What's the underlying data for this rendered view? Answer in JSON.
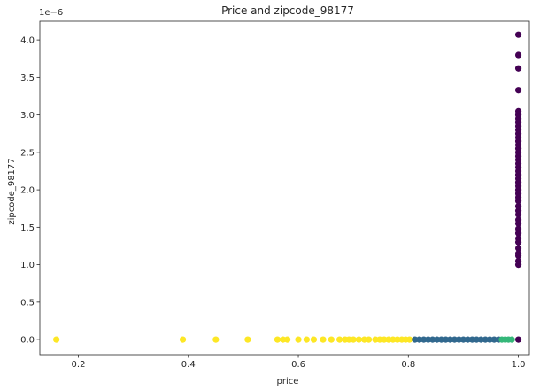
{
  "chart_data": {
    "type": "scatter",
    "title": "Price and zipcode_98177",
    "xlabel": "price",
    "ylabel": "zipcode_98177",
    "y_offset_label": "1e−6",
    "xlim": [
      0.13,
      1.02
    ],
    "ylim": [
      -0.2,
      4.25
    ],
    "x_ticks": [
      0.2,
      0.4,
      0.6,
      0.8,
      1.0
    ],
    "x_tick_labels": [
      "0.2",
      "0.4",
      "0.6",
      "0.8",
      "1.0"
    ],
    "y_ticks": [
      0.0,
      0.5,
      1.0,
      1.5,
      2.0,
      2.5,
      3.0,
      3.5,
      4.0
    ],
    "y_tick_labels": [
      "0.0",
      "0.5",
      "1.0",
      "1.5",
      "2.0",
      "2.5",
      "3.0",
      "3.5",
      "4.0"
    ],
    "grid": false,
    "legend": "none",
    "colors": {
      "yellow": "#fde725",
      "blue": "#31688e",
      "green": "#35b779",
      "purple": "#440154"
    },
    "groups": [
      {
        "color": "yellow",
        "points": [
          [
            0.16,
            0
          ],
          [
            0.39,
            0
          ],
          [
            0.45,
            0
          ],
          [
            0.508,
            0
          ],
          [
            0.562,
            0
          ],
          [
            0.572,
            0
          ],
          [
            0.58,
            0
          ],
          [
            0.6,
            0
          ],
          [
            0.615,
            0
          ],
          [
            0.628,
            0
          ],
          [
            0.645,
            0
          ],
          [
            0.66,
            0
          ],
          [
            0.675,
            0
          ],
          [
            0.685,
            0
          ],
          [
            0.692,
            0
          ],
          [
            0.7,
            0
          ],
          [
            0.71,
            0
          ],
          [
            0.72,
            0
          ],
          [
            0.728,
            0
          ],
          [
            0.74,
            0
          ],
          [
            0.748,
            0
          ],
          [
            0.756,
            0
          ],
          [
            0.764,
            0
          ],
          [
            0.772,
            0
          ],
          [
            0.78,
            0
          ],
          [
            0.788,
            0
          ],
          [
            0.795,
            0
          ],
          [
            0.802,
            0
          ]
        ]
      },
      {
        "color": "blue",
        "points": [
          [
            0.812,
            0
          ],
          [
            0.82,
            0
          ],
          [
            0.828,
            0
          ],
          [
            0.836,
            0
          ],
          [
            0.844,
            0
          ],
          [
            0.852,
            0
          ],
          [
            0.86,
            0
          ],
          [
            0.868,
            0
          ],
          [
            0.876,
            0
          ],
          [
            0.884,
            0
          ],
          [
            0.892,
            0
          ],
          [
            0.9,
            0
          ],
          [
            0.908,
            0
          ],
          [
            0.916,
            0
          ],
          [
            0.924,
            0
          ],
          [
            0.932,
            0
          ],
          [
            0.94,
            0
          ],
          [
            0.948,
            0
          ],
          [
            0.956,
            0
          ],
          [
            0.964,
            0
          ]
        ]
      },
      {
        "color": "green",
        "points": [
          [
            0.97,
            0
          ],
          [
            0.976,
            0
          ],
          [
            0.982,
            0
          ],
          [
            0.988,
            0
          ]
        ]
      },
      {
        "color": "purple",
        "points": [
          [
            1.0,
            0
          ],
          [
            1.0,
            1.0
          ],
          [
            1.0,
            1.05
          ],
          [
            1.0,
            1.12
          ],
          [
            1.0,
            1.15
          ],
          [
            1.0,
            1.22
          ],
          [
            1.0,
            1.3
          ],
          [
            1.0,
            1.35
          ],
          [
            1.0,
            1.42
          ],
          [
            1.0,
            1.48
          ],
          [
            1.0,
            1.55
          ],
          [
            1.0,
            1.6
          ],
          [
            1.0,
            1.67
          ],
          [
            1.0,
            1.72
          ],
          [
            1.0,
            1.78
          ],
          [
            1.0,
            1.85
          ],
          [
            1.0,
            1.9
          ],
          [
            1.0,
            1.95
          ],
          [
            1.0,
            2.0
          ],
          [
            1.0,
            2.05
          ],
          [
            1.0,
            2.1
          ],
          [
            1.0,
            2.15
          ],
          [
            1.0,
            2.2
          ],
          [
            1.0,
            2.25
          ],
          [
            1.0,
            2.3
          ],
          [
            1.0,
            2.35
          ],
          [
            1.0,
            2.4
          ],
          [
            1.0,
            2.45
          ],
          [
            1.0,
            2.5
          ],
          [
            1.0,
            2.55
          ],
          [
            1.0,
            2.6
          ],
          [
            1.0,
            2.65
          ],
          [
            1.0,
            2.7
          ],
          [
            1.0,
            2.75
          ],
          [
            1.0,
            2.8
          ],
          [
            1.0,
            2.85
          ],
          [
            1.0,
            2.9
          ],
          [
            1.0,
            2.95
          ],
          [
            1.0,
            3.0
          ],
          [
            1.0,
            3.05
          ],
          [
            1.0,
            3.33
          ],
          [
            1.0,
            3.62
          ],
          [
            1.0,
            3.8
          ],
          [
            1.0,
            4.07
          ]
        ]
      }
    ]
  }
}
